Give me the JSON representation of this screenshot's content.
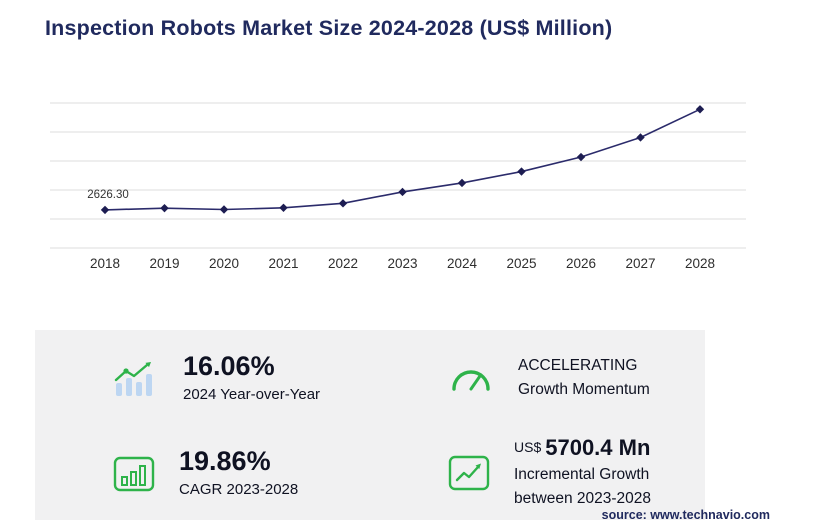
{
  "header": {
    "title": "Inspection Robots Market Size 2024-2028 (US$ Million)"
  },
  "chart_data": {
    "type": "line",
    "title": "Inspection Robots Market Size 2024-2028 (US$ Million)",
    "unit": "US$ Million",
    "categories": [
      "2018",
      "2019",
      "2020",
      "2021",
      "2022",
      "2023",
      "2024",
      "2025",
      "2026",
      "2027",
      "2028"
    ],
    "values": [
      2626.3,
      2748,
      2655,
      2772,
      3080,
      3866.1,
      4487.0,
      5272,
      6274,
      7623,
      9566.5
    ],
    "first_point_label": "2626.30",
    "ylim": [
      0,
      10000
    ],
    "gridline_values": [
      0,
      2000,
      4000,
      6000,
      8000,
      10000
    ],
    "grid": "horizontal",
    "legend": "none",
    "marker": "diamond",
    "line_color": "#2b2b6b",
    "marker_color": "#1d1d52"
  },
  "stats": {
    "yoy": {
      "value": "16.06%",
      "label": "2024 Year-over-Year",
      "icon": "bar-chart-trend-icon"
    },
    "momentum": {
      "line1": "ACCELERATING",
      "line2": "Growth Momentum",
      "icon": "gauge-icon"
    },
    "cagr": {
      "value": "19.86%",
      "label": "CAGR 2023-2028",
      "icon": "bar-chart-outline-icon"
    },
    "incremental": {
      "currency": "US$",
      "value": "5700.4 Mn",
      "label_line1": "Incremental Growth",
      "label_line2": "between 2023-2028",
      "icon": "growth-arrow-icon"
    }
  },
  "footer": {
    "source": "source: www.technavio.com"
  },
  "colors": {
    "navy": "#202a5e",
    "green": "#2eb34a",
    "light_blue": "#bdd6f2",
    "panel_bg": "#f1f1f2",
    "gridline": "#dcdcdc"
  }
}
